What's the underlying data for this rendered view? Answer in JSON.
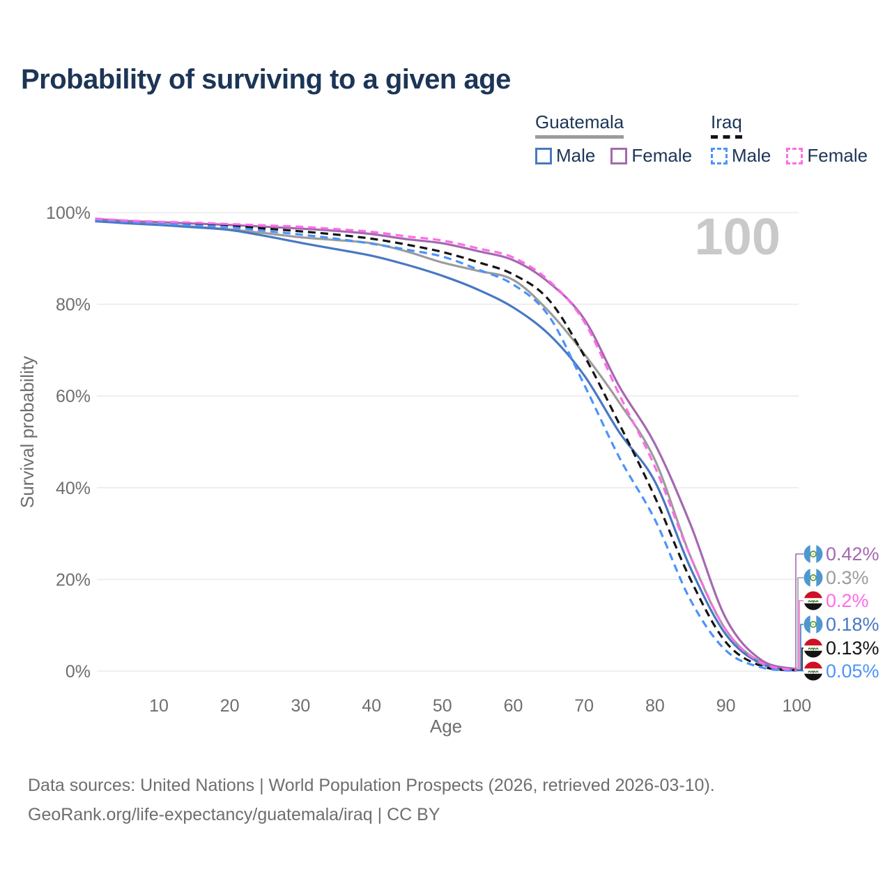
{
  "header": {
    "title": "Probability of surviving to a given age"
  },
  "watermark": "100",
  "legend": {
    "groups": [
      {
        "name": "Guatemala",
        "line_style": "solid",
        "underline_color": "#9c9c9c",
        "items": [
          {
            "label": "Male",
            "color": "#4878c2",
            "dashed": false
          },
          {
            "label": "Female",
            "color": "#a469b0",
            "dashed": false
          }
        ]
      },
      {
        "name": "Iraq",
        "line_style": "dashed",
        "underline_color": "#141414",
        "items": [
          {
            "label": "Male",
            "color": "#4b93fb",
            "dashed": true
          },
          {
            "label": "Female",
            "color": "#ff6ce6",
            "dashed": true
          }
        ]
      }
    ]
  },
  "chart_data": {
    "type": "line",
    "title": "Probability of surviving to a given age",
    "xlabel": "Age",
    "ylabel": "Survival probability",
    "xlim": [
      1,
      100
    ],
    "ylim": [
      0,
      100
    ],
    "grid": true,
    "legend_position": "top-right",
    "x_ticks": [
      10,
      20,
      30,
      40,
      50,
      60,
      70,
      80,
      90,
      100
    ],
    "y_ticks": [
      {
        "value": 100,
        "label": "100%"
      },
      {
        "value": 80,
        "label": "80%"
      },
      {
        "value": 60,
        "label": "60%"
      },
      {
        "value": 40,
        "label": "40%"
      },
      {
        "value": 20,
        "label": "20%"
      },
      {
        "value": 0,
        "label": "0%"
      }
    ],
    "x": [
      1,
      5,
      10,
      15,
      20,
      25,
      30,
      35,
      40,
      45,
      50,
      55,
      60,
      65,
      70,
      75,
      80,
      85,
      90,
      95,
      100
    ],
    "series": [
      {
        "id": "guatemala_both",
        "country": "Guatemala",
        "sex": "Both",
        "color": "#9c9c9c",
        "dash": false,
        "values": [
          98.2,
          97.8,
          97.4,
          96.9,
          96.3,
          95.5,
          94.6,
          94.0,
          93.3,
          91.5,
          89.1,
          87.3,
          85.3,
          78.5,
          69.2,
          58.5,
          46.0,
          25.0,
          9.0,
          1.9,
          0.3
        ]
      },
      {
        "id": "guatemala_male",
        "country": "Guatemala",
        "sex": "Male",
        "color": "#4878c2",
        "dash": false,
        "values": [
          98.1,
          97.7,
          97.3,
          96.8,
          96.2,
          94.9,
          93.4,
          92.0,
          90.6,
          88.6,
          86.2,
          83.2,
          79.3,
          73.5,
          64.5,
          52.0,
          41.3,
          22.5,
          8.0,
          1.6,
          0.18
        ]
      },
      {
        "id": "guatemala_female",
        "country": "Guatemala",
        "sex": "Female",
        "color": "#a469b0",
        "dash": false,
        "values": [
          98.6,
          98.2,
          97.9,
          97.6,
          97.3,
          96.9,
          96.5,
          96.0,
          95.3,
          94.2,
          93.3,
          91.6,
          89.6,
          84.8,
          76.8,
          62.0,
          49.5,
          32.0,
          11.5,
          2.4,
          0.42
        ]
      },
      {
        "id": "iraq_both",
        "country": "Iraq",
        "sex": "Both",
        "color": "#141414",
        "dash": true,
        "values": [
          98.5,
          98.1,
          97.8,
          97.5,
          97.1,
          96.5,
          95.9,
          95.2,
          94.3,
          93.0,
          91.4,
          89.2,
          86.5,
          81.0,
          68.8,
          53.8,
          37.9,
          20.0,
          6.3,
          1.1,
          0.13
        ]
      },
      {
        "id": "iraq_male",
        "country": "Iraq",
        "sex": "Male",
        "color": "#4b93fb",
        "dash": true,
        "values": [
          98.4,
          98.0,
          97.6,
          97.2,
          96.8,
          96.0,
          95.2,
          94.3,
          93.2,
          91.9,
          90.4,
          87.6,
          84.3,
          77.5,
          62.5,
          46.5,
          33.0,
          15.5,
          4.5,
          0.8,
          0.05
        ]
      },
      {
        "id": "iraq_female",
        "country": "Iraq",
        "sex": "Female",
        "color": "#ff6ce6",
        "dash": true,
        "values": [
          98.7,
          98.3,
          98.0,
          97.8,
          97.5,
          97.2,
          96.9,
          96.4,
          95.8,
          94.8,
          93.9,
          92.2,
          90.2,
          85.2,
          76.2,
          60.2,
          44.5,
          25.0,
          9.0,
          1.8,
          0.2
        ]
      }
    ],
    "end_labels": [
      {
        "series": "guatemala_female",
        "flag": "guatemala",
        "text": "0.42%"
      },
      {
        "series": "guatemala_both",
        "flag": "guatemala",
        "text": "0.3%"
      },
      {
        "series": "iraq_female",
        "flag": "iraq",
        "text": "0.2%"
      },
      {
        "series": "guatemala_male",
        "flag": "guatemala",
        "text": "0.18%"
      },
      {
        "series": "iraq_both",
        "flag": "iraq",
        "text": "0.13%"
      },
      {
        "series": "iraq_male",
        "flag": "iraq",
        "text": "0.05%"
      }
    ]
  },
  "icons": {
    "guatemala_flag": {
      "blue": "#4e97d2",
      "white": "#ffffff",
      "emblem_green": "#5f9e44"
    },
    "iraq_flag": {
      "red": "#cd1126",
      "white": "#ffffff",
      "black": "#141414",
      "script_green": "#3f7d2c"
    }
  },
  "footer": {
    "line1": "Data sources: United Nations | World Population Prospects (2026, retrieved 2026-03-10).",
    "line2": "GeoRank.org/life-expectancy/guatemala/iraq | CC BY"
  }
}
